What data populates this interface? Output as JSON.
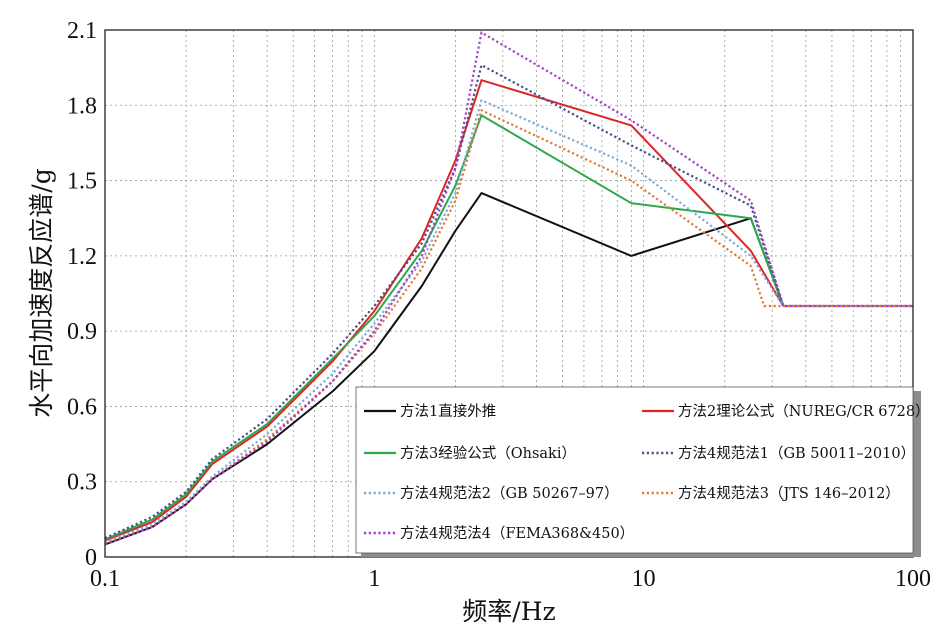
{
  "chart_data": {
    "type": "line",
    "xlabel": "频率/Hz",
    "ylabel": "水平向加速度反应谱/g",
    "x_scale": "log",
    "xlim": [
      0.1,
      100
    ],
    "ylim": [
      0,
      2.1
    ],
    "x_ticks": [
      0.1,
      1,
      10,
      100
    ],
    "x_tick_labels": [
      "0.1",
      "1",
      "10",
      "100"
    ],
    "y_ticks": [
      0,
      0.3,
      0.6,
      0.9,
      1.2,
      1.5,
      1.8,
      2.1
    ],
    "y_tick_labels": [
      "0",
      "0.3",
      "0.6",
      "0.9",
      "1.2",
      "1.5",
      "1.8",
      "2.1"
    ],
    "grid": true,
    "legend_position": "lower-right",
    "series": [
      {
        "name": "方法1直接外推",
        "color": "#111111",
        "style": "solid",
        "x": [
          0.1,
          0.15,
          0.2,
          0.25,
          0.4,
          0.7,
          1.0,
          1.5,
          2.0,
          2.5,
          9.0,
          25.0,
          33.0,
          100.0
        ],
        "y": [
          0.05,
          0.12,
          0.21,
          0.31,
          0.45,
          0.66,
          0.82,
          1.08,
          1.3,
          1.45,
          1.2,
          1.35,
          1.0,
          1.0
        ]
      },
      {
        "name": "方法2理论公式（NUREG/CR 6728）",
        "color": "#e02424",
        "style": "solid",
        "x": [
          0.1,
          0.15,
          0.2,
          0.25,
          0.4,
          0.7,
          1.0,
          1.5,
          2.0,
          2.5,
          9.0,
          25.0,
          33.0,
          100.0
        ],
        "y": [
          0.065,
          0.14,
          0.24,
          0.37,
          0.52,
          0.78,
          0.98,
          1.27,
          1.58,
          1.9,
          1.72,
          1.22,
          1.0,
          1.0
        ]
      },
      {
        "name": "方法3经验公式（Ohsaki）",
        "color": "#2aa84a",
        "style": "solid",
        "x": [
          0.1,
          0.15,
          0.2,
          0.25,
          0.4,
          0.7,
          1.0,
          1.5,
          2.0,
          2.5,
          9.0,
          25.0,
          33.0,
          100.0
        ],
        "y": [
          0.07,
          0.15,
          0.25,
          0.38,
          0.53,
          0.79,
          0.96,
          1.22,
          1.48,
          1.76,
          1.41,
          1.35,
          1.0,
          1.0
        ]
      },
      {
        "name": "方法4规范法1（GB 50011–2010）",
        "color": "#4a4f86",
        "style": "dotted",
        "x": [
          0.1,
          0.15,
          0.2,
          0.25,
          0.4,
          0.7,
          1.0,
          1.5,
          2.0,
          2.5,
          9.0,
          25.0,
          33.0,
          100.0
        ],
        "y": [
          0.075,
          0.16,
          0.26,
          0.39,
          0.55,
          0.81,
          1.0,
          1.25,
          1.55,
          1.96,
          1.64,
          1.4,
          1.0,
          1.0
        ]
      },
      {
        "name": "方法4规范法2（GB 50267–97）",
        "color": "#7ea9d2",
        "style": "dotted",
        "x": [
          0.1,
          0.15,
          0.2,
          0.25,
          0.4,
          0.7,
          1.0,
          1.5,
          2.0,
          2.5,
          9.0,
          25.0,
          33.0,
          100.0
        ],
        "y": [
          0.06,
          0.13,
          0.22,
          0.32,
          0.49,
          0.73,
          0.93,
          1.18,
          1.45,
          1.82,
          1.56,
          1.2,
          1.0,
          1.0
        ]
      },
      {
        "name": "方法4规范法3（JTS 146–2012）",
        "color": "#e07a3a",
        "style": "dotted",
        "x": [
          0.1,
          0.15,
          0.2,
          0.25,
          0.4,
          0.7,
          1.0,
          1.5,
          2.0,
          2.5,
          9.0,
          25.0,
          28.0,
          100.0
        ],
        "y": [
          0.055,
          0.12,
          0.21,
          0.31,
          0.47,
          0.7,
          0.89,
          1.15,
          1.42,
          1.78,
          1.5,
          1.16,
          1.0,
          1.0
        ]
      },
      {
        "name": "方法4规范法4（FEMA368&450）",
        "color": "#a23fc7",
        "style": "dotted",
        "x": [
          0.1,
          0.15,
          0.2,
          0.25,
          0.4,
          0.7,
          1.0,
          1.5,
          2.0,
          2.5,
          9.0,
          25.0,
          33.0,
          100.0
        ],
        "y": [
          0.05,
          0.12,
          0.21,
          0.31,
          0.46,
          0.7,
          0.9,
          1.2,
          1.55,
          2.09,
          1.74,
          1.42,
          1.0,
          1.0
        ]
      }
    ]
  }
}
